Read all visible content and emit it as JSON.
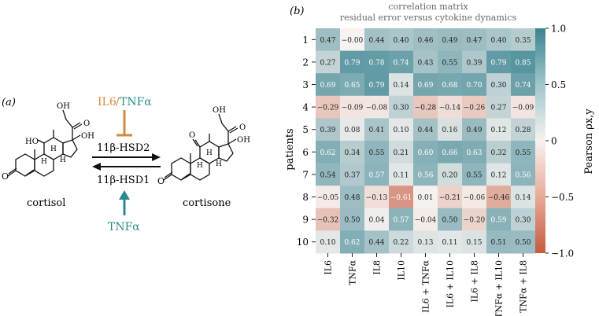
{
  "panel_a": {
    "label": "(a)",
    "inhibitor": {
      "il6": "IL6",
      "slash": "/",
      "tnf": "TNFα"
    },
    "enzyme_top": "11β-HSD2",
    "enzyme_bottom": "11β-HSD1",
    "activator": "TNFα",
    "left_molecule": "cortisol",
    "right_molecule": "cortisone",
    "atom_labels": {
      "oh": "OH",
      "ho": "HO",
      "o": "O",
      "h": "H"
    },
    "colors": {
      "il6": "#d08a3e",
      "tnf": "#2b8a8f",
      "arrow": "#111111"
    }
  },
  "panel_b": {
    "label": "(b)",
    "title_line1": "correlation matrix",
    "title_line2": "residual error versus cytokine dynamics",
    "ylabel": "patients",
    "colorbar_label": "Pearson ρx,y",
    "colorbar_ticks": [
      "1.0",
      "0.5",
      "0",
      "−0.5",
      "−1.0"
    ],
    "colors": {
      "positive": "#3b8491",
      "neutral": "#f6f2f0",
      "negative": "#c55a3e"
    }
  },
  "chart_data": {
    "type": "heatmap",
    "title": "correlation matrix residual error versus cytokine dynamics",
    "xlabel": "",
    "ylabel": "patients",
    "columns": [
      "IL6",
      "TNFα",
      "IL8",
      "IL10",
      "IL6 + TNFα",
      "IL6 + IL10",
      "IL6 + IL8",
      "TNFα + IL10",
      "TNFα + IL8"
    ],
    "rows": [
      "1",
      "2",
      "3",
      "4",
      "5",
      "6",
      "7",
      "8",
      "9",
      "10"
    ],
    "values": [
      [
        0.47,
        -0.0,
        0.44,
        0.4,
        0.46,
        0.49,
        0.47,
        0.4,
        0.35
      ],
      [
        0.27,
        0.79,
        0.78,
        0.74,
        0.43,
        0.55,
        0.39,
        0.79,
        0.85
      ],
      [
        0.69,
        0.65,
        0.79,
        0.14,
        0.69,
        0.68,
        0.7,
        0.3,
        0.74
      ],
      [
        -0.29,
        -0.09,
        -0.08,
        0.3,
        -0.28,
        -0.14,
        -0.26,
        0.27,
        -0.09
      ],
      [
        0.39,
        0.08,
        0.41,
        0.1,
        0.44,
        0.16,
        0.49,
        0.12,
        0.28
      ],
      [
        0.62,
        0.34,
        0.55,
        0.21,
        0.6,
        0.66,
        0.63,
        0.32,
        0.55
      ],
      [
        0.54,
        0.37,
        0.57,
        0.11,
        0.56,
        0.2,
        0.55,
        0.12,
        0.56
      ],
      [
        -0.05,
        0.48,
        -0.13,
        -0.61,
        0.01,
        -0.21,
        -0.06,
        -0.46,
        0.14
      ],
      [
        -0.32,
        0.5,
        0.04,
        0.57,
        -0.04,
        0.5,
        -0.2,
        0.59,
        0.3
      ],
      [
        0.1,
        0.62,
        0.44,
        0.22,
        0.13,
        0.11,
        0.15,
        0.51,
        0.5
      ]
    ],
    "colorbar_range": [
      -1.0,
      1.0
    ]
  }
}
